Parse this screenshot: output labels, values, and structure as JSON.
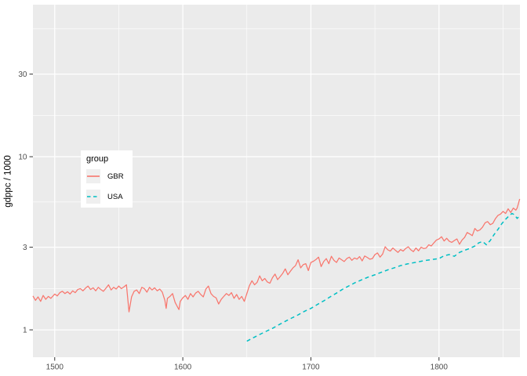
{
  "chart_data": {
    "type": "line",
    "ylabel": "gdppc / 1000",
    "xlabel": "",
    "x_axis": {
      "range": [
        1483,
        1863.2
      ],
      "ticks": [
        1500,
        1600,
        1700,
        1800
      ],
      "tick_labels": [
        "1500",
        "1600",
        "1700",
        "1800"
      ],
      "minor_ticks": [
        1550,
        1650,
        1750,
        1850
      ]
    },
    "y_axis": {
      "scale": "log10",
      "range": [
        0.695,
        75.5
      ],
      "ticks": [
        1,
        3,
        10,
        30
      ],
      "tick_labels": [
        "1",
        "3",
        "10",
        "30"
      ],
      "minor_ticks": [
        1.732,
        5.477,
        17.32,
        54.77
      ]
    },
    "grid": true,
    "legend_position": "inside-left",
    "series": [
      {
        "name": "GBR",
        "color": "#F8766D",
        "style": "solid",
        "points": [
          [
            1483,
            1.57
          ],
          [
            1485,
            1.48
          ],
          [
            1487,
            1.55
          ],
          [
            1489,
            1.46
          ],
          [
            1491,
            1.58
          ],
          [
            1493,
            1.5
          ],
          [
            1495,
            1.56
          ],
          [
            1497,
            1.52
          ],
          [
            1500,
            1.61
          ],
          [
            1502,
            1.57
          ],
          [
            1504,
            1.64
          ],
          [
            1506,
            1.67
          ],
          [
            1508,
            1.62
          ],
          [
            1510,
            1.66
          ],
          [
            1512,
            1.61
          ],
          [
            1514,
            1.68
          ],
          [
            1516,
            1.64
          ],
          [
            1518,
            1.71
          ],
          [
            1520,
            1.73
          ],
          [
            1522,
            1.68
          ],
          [
            1524,
            1.74
          ],
          [
            1526,
            1.79
          ],
          [
            1528,
            1.71
          ],
          [
            1530,
            1.75
          ],
          [
            1532,
            1.68
          ],
          [
            1534,
            1.76
          ],
          [
            1536,
            1.71
          ],
          [
            1538,
            1.67
          ],
          [
            1540,
            1.74
          ],
          [
            1542,
            1.82
          ],
          [
            1544,
            1.7
          ],
          [
            1546,
            1.76
          ],
          [
            1548,
            1.72
          ],
          [
            1550,
            1.79
          ],
          [
            1552,
            1.73
          ],
          [
            1554,
            1.77
          ],
          [
            1556,
            1.82
          ],
          [
            1558,
            1.27
          ],
          [
            1560,
            1.55
          ],
          [
            1562,
            1.67
          ],
          [
            1564,
            1.7
          ],
          [
            1566,
            1.62
          ],
          [
            1568,
            1.76
          ],
          [
            1570,
            1.73
          ],
          [
            1572,
            1.65
          ],
          [
            1574,
            1.76
          ],
          [
            1576,
            1.7
          ],
          [
            1578,
            1.75
          ],
          [
            1580,
            1.68
          ],
          [
            1582,
            1.72
          ],
          [
            1584,
            1.65
          ],
          [
            1586,
            1.48
          ],
          [
            1587,
            1.33
          ],
          [
            1588,
            1.52
          ],
          [
            1590,
            1.56
          ],
          [
            1592,
            1.62
          ],
          [
            1594,
            1.44
          ],
          [
            1596,
            1.35
          ],
          [
            1597,
            1.31
          ],
          [
            1598,
            1.46
          ],
          [
            1600,
            1.53
          ],
          [
            1602,
            1.58
          ],
          [
            1604,
            1.5
          ],
          [
            1606,
            1.62
          ],
          [
            1608,
            1.55
          ],
          [
            1610,
            1.63
          ],
          [
            1612,
            1.67
          ],
          [
            1614,
            1.6
          ],
          [
            1616,
            1.55
          ],
          [
            1618,
            1.72
          ],
          [
            1620,
            1.79
          ],
          [
            1622,
            1.62
          ],
          [
            1624,
            1.56
          ],
          [
            1626,
            1.53
          ],
          [
            1628,
            1.41
          ],
          [
            1630,
            1.5
          ],
          [
            1632,
            1.56
          ],
          [
            1634,
            1.62
          ],
          [
            1636,
            1.58
          ],
          [
            1638,
            1.64
          ],
          [
            1640,
            1.52
          ],
          [
            1642,
            1.6
          ],
          [
            1644,
            1.5
          ],
          [
            1646,
            1.56
          ],
          [
            1648,
            1.46
          ],
          [
            1650,
            1.62
          ],
          [
            1652,
            1.8
          ],
          [
            1654,
            1.92
          ],
          [
            1656,
            1.82
          ],
          [
            1658,
            1.88
          ],
          [
            1660,
            2.05
          ],
          [
            1662,
            1.92
          ],
          [
            1664,
            1.98
          ],
          [
            1666,
            1.89
          ],
          [
            1668,
            1.86
          ],
          [
            1670,
            2.0
          ],
          [
            1672,
            2.1
          ],
          [
            1674,
            1.95
          ],
          [
            1676,
            2.03
          ],
          [
            1678,
            2.12
          ],
          [
            1680,
            2.25
          ],
          [
            1682,
            2.08
          ],
          [
            1684,
            2.18
          ],
          [
            1686,
            2.28
          ],
          [
            1688,
            2.35
          ],
          [
            1690,
            2.54
          ],
          [
            1692,
            2.28
          ],
          [
            1694,
            2.38
          ],
          [
            1696,
            2.41
          ],
          [
            1698,
            2.2
          ],
          [
            1700,
            2.45
          ],
          [
            1702,
            2.49
          ],
          [
            1704,
            2.55
          ],
          [
            1706,
            2.63
          ],
          [
            1708,
            2.32
          ],
          [
            1710,
            2.48
          ],
          [
            1712,
            2.58
          ],
          [
            1714,
            2.41
          ],
          [
            1716,
            2.66
          ],
          [
            1718,
            2.52
          ],
          [
            1720,
            2.45
          ],
          [
            1722,
            2.6
          ],
          [
            1724,
            2.54
          ],
          [
            1726,
            2.48
          ],
          [
            1728,
            2.58
          ],
          [
            1730,
            2.63
          ],
          [
            1732,
            2.52
          ],
          [
            1734,
            2.6
          ],
          [
            1736,
            2.56
          ],
          [
            1738,
            2.65
          ],
          [
            1740,
            2.5
          ],
          [
            1742,
            2.67
          ],
          [
            1744,
            2.62
          ],
          [
            1746,
            2.56
          ],
          [
            1748,
            2.58
          ],
          [
            1750,
            2.72
          ],
          [
            1752,
            2.78
          ],
          [
            1754,
            2.63
          ],
          [
            1756,
            2.74
          ],
          [
            1758,
            3.02
          ],
          [
            1760,
            2.9
          ],
          [
            1762,
            2.85
          ],
          [
            1764,
            2.97
          ],
          [
            1766,
            2.88
          ],
          [
            1768,
            2.8
          ],
          [
            1770,
            2.91
          ],
          [
            1772,
            2.85
          ],
          [
            1774,
            2.95
          ],
          [
            1776,
            3.02
          ],
          [
            1778,
            2.9
          ],
          [
            1780,
            2.83
          ],
          [
            1782,
            2.97
          ],
          [
            1784,
            2.86
          ],
          [
            1786,
            3.0
          ],
          [
            1788,
            2.95
          ],
          [
            1790,
            2.97
          ],
          [
            1792,
            3.1
          ],
          [
            1794,
            3.05
          ],
          [
            1796,
            3.18
          ],
          [
            1798,
            3.3
          ],
          [
            1800,
            3.35
          ],
          [
            1802,
            3.45
          ],
          [
            1804,
            3.26
          ],
          [
            1806,
            3.38
          ],
          [
            1808,
            3.25
          ],
          [
            1810,
            3.2
          ],
          [
            1812,
            3.28
          ],
          [
            1814,
            3.35
          ],
          [
            1816,
            3.12
          ],
          [
            1818,
            3.3
          ],
          [
            1820,
            3.42
          ],
          [
            1822,
            3.65
          ],
          [
            1824,
            3.58
          ],
          [
            1826,
            3.5
          ],
          [
            1828,
            3.85
          ],
          [
            1830,
            3.72
          ],
          [
            1832,
            3.78
          ],
          [
            1834,
            3.92
          ],
          [
            1836,
            4.15
          ],
          [
            1838,
            4.22
          ],
          [
            1840,
            4.05
          ],
          [
            1842,
            4.12
          ],
          [
            1844,
            4.38
          ],
          [
            1846,
            4.58
          ],
          [
            1848,
            4.66
          ],
          [
            1850,
            4.83
          ],
          [
            1852,
            4.7
          ],
          [
            1854,
            5.0
          ],
          [
            1856,
            4.76
          ],
          [
            1858,
            5.05
          ],
          [
            1860,
            4.91
          ],
          [
            1861,
            5.05
          ],
          [
            1862,
            5.35
          ],
          [
            1863,
            5.7
          ]
        ]
      },
      {
        "name": "USA",
        "color": "#00BFC4",
        "style": "dashed",
        "points": [
          [
            1650,
            0.86
          ],
          [
            1655,
            0.9
          ],
          [
            1660,
            0.94
          ],
          [
            1665,
            0.98
          ],
          [
            1670,
            1.02
          ],
          [
            1675,
            1.07
          ],
          [
            1680,
            1.12
          ],
          [
            1685,
            1.17
          ],
          [
            1690,
            1.22
          ],
          [
            1695,
            1.28
          ],
          [
            1700,
            1.33
          ],
          [
            1705,
            1.4
          ],
          [
            1710,
            1.47
          ],
          [
            1715,
            1.55
          ],
          [
            1720,
            1.63
          ],
          [
            1725,
            1.72
          ],
          [
            1730,
            1.8
          ],
          [
            1735,
            1.88
          ],
          [
            1740,
            1.95
          ],
          [
            1745,
            2.02
          ],
          [
            1750,
            2.08
          ],
          [
            1755,
            2.15
          ],
          [
            1760,
            2.22
          ],
          [
            1765,
            2.28
          ],
          [
            1770,
            2.35
          ],
          [
            1775,
            2.4
          ],
          [
            1780,
            2.44
          ],
          [
            1785,
            2.48
          ],
          [
            1790,
            2.52
          ],
          [
            1795,
            2.55
          ],
          [
            1800,
            2.58
          ],
          [
            1804,
            2.68
          ],
          [
            1808,
            2.72
          ],
          [
            1812,
            2.66
          ],
          [
            1816,
            2.8
          ],
          [
            1820,
            2.88
          ],
          [
            1824,
            2.95
          ],
          [
            1828,
            3.05
          ],
          [
            1831,
            3.18
          ],
          [
            1834,
            3.24
          ],
          [
            1837,
            3.1
          ],
          [
            1840,
            3.28
          ],
          [
            1843,
            3.55
          ],
          [
            1846,
            3.8
          ],
          [
            1849,
            4.1
          ],
          [
            1852,
            4.35
          ],
          [
            1855,
            4.58
          ],
          [
            1857,
            4.7
          ],
          [
            1859,
            4.62
          ],
          [
            1861,
            4.4
          ],
          [
            1863,
            4.55
          ]
        ]
      }
    ]
  },
  "legend": {
    "title": "group",
    "entries": [
      {
        "label": "GBR",
        "color": "#F8766D",
        "style": "solid"
      },
      {
        "label": "USA",
        "color": "#00BFC4",
        "style": "dashed"
      }
    ]
  },
  "colors": {
    "panel_background": "#EBEBEB",
    "grid": "#FFFFFF",
    "tick_text": "#4D4D4D",
    "tick_mark": "#333333",
    "legend_key_fill": "#EFEFEF",
    "page_background": "#FFFFFF"
  }
}
